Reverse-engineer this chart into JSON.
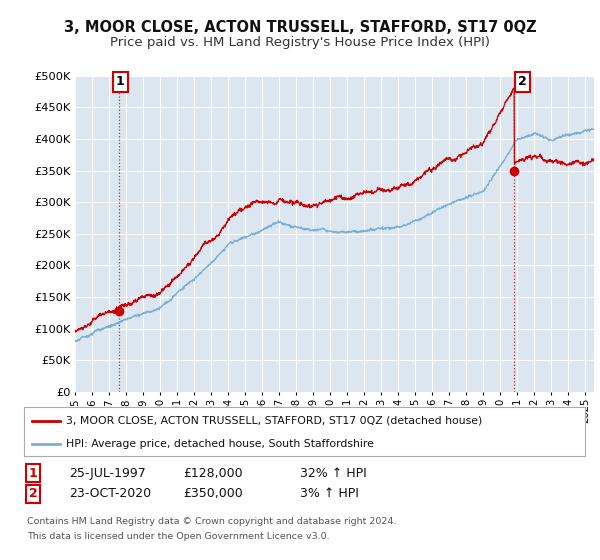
{
  "title": "3, MOOR CLOSE, ACTON TRUSSELL, STAFFORD, ST17 0QZ",
  "subtitle": "Price paid vs. HM Land Registry's House Price Index (HPI)",
  "ylim": [
    0,
    500000
  ],
  "yticks": [
    0,
    50000,
    100000,
    150000,
    200000,
    250000,
    300000,
    350000,
    400000,
    450000,
    500000
  ],
  "xlim_start": 1995.0,
  "xlim_end": 2025.5,
  "background_color": "#ffffff",
  "plot_bg_color": "#dce6f0",
  "grid_color": "#ffffff",
  "sale1_date": 1997.56,
  "sale1_price": 128000,
  "sale2_date": 2020.81,
  "sale2_price": 350000,
  "legend_label1": "3, MOOR CLOSE, ACTON TRUSSELL, STAFFORD, ST17 0QZ (detached house)",
  "legend_label2": "HPI: Average price, detached house, South Staffordshire",
  "footnote1": "Contains HM Land Registry data © Crown copyright and database right 2024.",
  "footnote2": "This data is licensed under the Open Government Licence v3.0.",
  "table_row1": [
    "1",
    "25-JUL-1997",
    "£128,000",
    "32% ↑ HPI"
  ],
  "table_row2": [
    "2",
    "23-OCT-2020",
    "£350,000",
    "3% ↑ HPI"
  ],
  "red_color": "#cc0000",
  "blue_color": "#7bafd4",
  "title_fontsize": 10.5,
  "subtitle_fontsize": 9.5
}
